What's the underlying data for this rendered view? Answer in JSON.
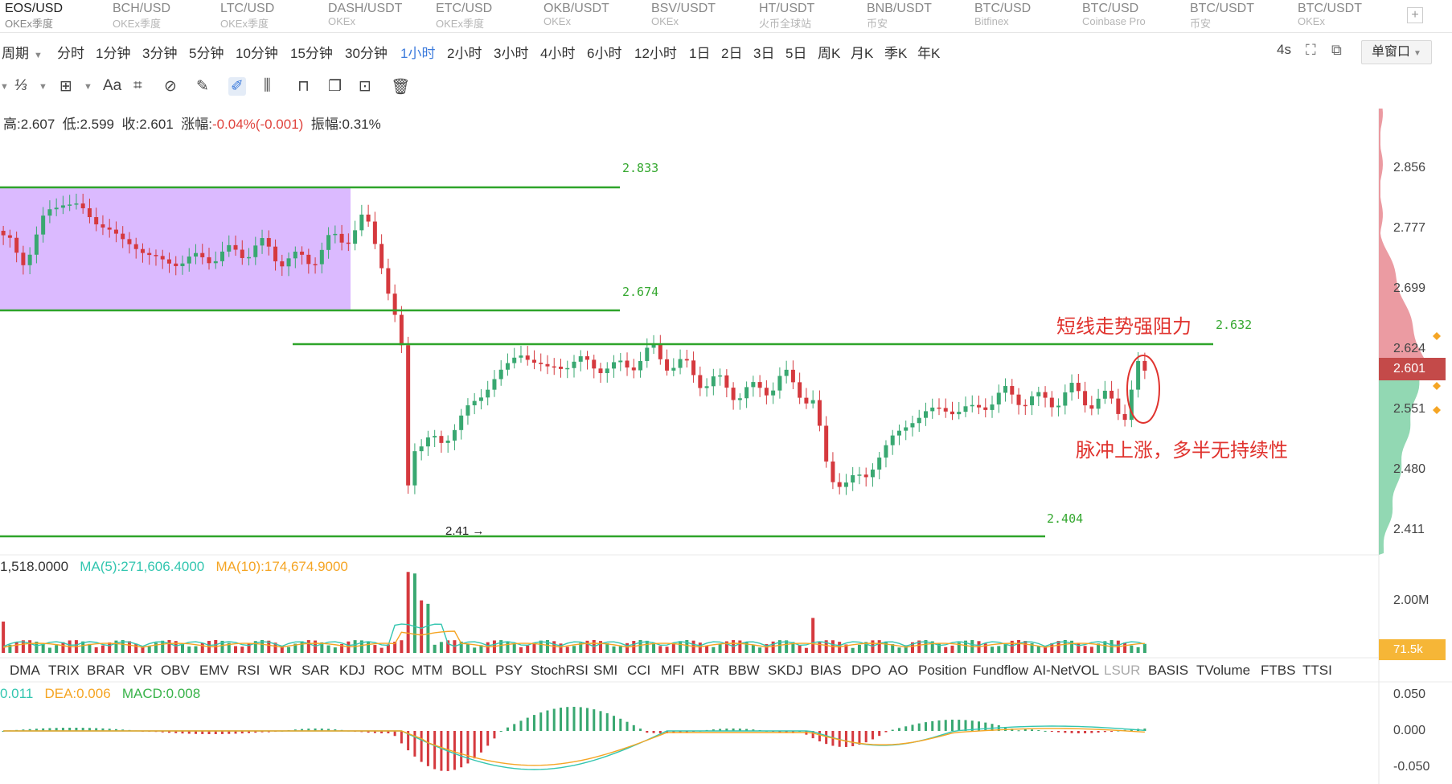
{
  "tabs": [
    {
      "symbol": "EOS/USD",
      "exchange": "OKEx季度",
      "active": true
    },
    {
      "symbol": "BCH/USD",
      "exchange": "OKEx季度"
    },
    {
      "symbol": "LTC/USD",
      "exchange": "OKEx季度"
    },
    {
      "symbol": "DASH/USDT",
      "exchange": "OKEx"
    },
    {
      "symbol": "ETC/USD",
      "exchange": "OKEx季度"
    },
    {
      "symbol": "OKB/USDT",
      "exchange": "OKEx"
    },
    {
      "symbol": "BSV/USDT",
      "exchange": "OKEx"
    },
    {
      "symbol": "HT/USDT",
      "exchange": "火币全球站"
    },
    {
      "symbol": "BNB/USDT",
      "exchange": "币安"
    },
    {
      "symbol": "BTC/USD",
      "exchange": "Bitfinex"
    },
    {
      "symbol": "BTC/USD",
      "exchange": "Coinbase Pro"
    },
    {
      "symbol": "BTC/USDT",
      "exchange": "币安"
    },
    {
      "symbol": "BTC/USDT",
      "exchange": "OKEx"
    }
  ],
  "tab_add": "+",
  "periods": {
    "label": "周期",
    "items": [
      "分时",
      "1分钟",
      "3分钟",
      "5分钟",
      "10分钟",
      "15分钟",
      "30分钟",
      "1小时",
      "2小时",
      "3小时",
      "4小时",
      "6小时",
      "12小时",
      "1日",
      "2日",
      "3日",
      "5日",
      "周K",
      "月K",
      "季K",
      "年K"
    ],
    "active": "1小时"
  },
  "refresh": "4s",
  "window_mode": "单窗口",
  "toolbar": {
    "text_tool": "Aa"
  },
  "ohlc": {
    "high_label": "高:",
    "high": "2.607",
    "low_label": "低:",
    "low": "2.599",
    "close_label": "收:",
    "close": "2.601",
    "change_label": "涨幅:",
    "change": "-0.04%(-0.001)",
    "amp_label": "振幅:",
    "amp": "0.31%"
  },
  "price_axis": [
    "2.856",
    "2.777",
    "2.699",
    "2.624",
    "2.551",
    "2.480",
    "2.411"
  ],
  "current_price": "2.601",
  "levels": [
    "2.833",
    "2.674",
    "2.632",
    "2.404"
  ],
  "low_marker": "2.41",
  "annotations": {
    "resistance": "短线走势强阻力",
    "pulse": "脉冲上涨，多半无持续性"
  },
  "volume": {
    "vol": "1,518.0000",
    "ma5": "MA(5):271,606.4000",
    "ma10": "MA(10):174,674.9000",
    "axis": "2.00M",
    "tag": "71.5k"
  },
  "indicators": [
    "DMA",
    "TRIX",
    "BRAR",
    "VR",
    "OBV",
    "EMV",
    "RSI",
    "WR",
    "SAR",
    "KDJ",
    "ROC",
    "MTM",
    "BOLL",
    "PSY",
    "StochRSI",
    "SMI",
    "CCI",
    "MFI",
    "ATR",
    "BBW",
    "SKDJ",
    "BIAS",
    "DPO",
    "AO",
    "Position",
    "Fundflow",
    "AI-NetVOL",
    "LSUR",
    "BASIS",
    "TVolume",
    "FTBS",
    "TTSI"
  ],
  "macd": {
    "dif": "0.011",
    "dea": "DEA:0.006",
    "macd": "MACD:0.008",
    "axis": [
      "0.050",
      "0.000",
      "-0.050"
    ]
  },
  "colors": {
    "up": "#39a871",
    "down": "#d5393e",
    "level": "#2ea42a",
    "zone": "#d7b2ff",
    "accent": "#3d7bdc",
    "ma5": "#33c6b0",
    "ma10": "#f5a524"
  }
}
